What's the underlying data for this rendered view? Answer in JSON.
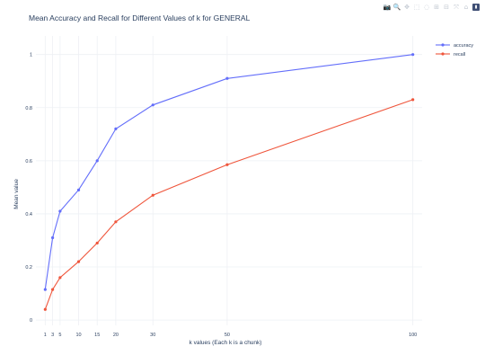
{
  "modebar": {
    "buttons": [
      {
        "icon": "camera-icon",
        "glyph": "📷"
      },
      {
        "icon": "zoom-icon",
        "glyph": "🔍"
      },
      {
        "icon": "pan-icon",
        "glyph": "✥"
      },
      {
        "icon": "box-select-icon",
        "glyph": "⬚"
      },
      {
        "icon": "lasso-select-icon",
        "glyph": "◌"
      },
      {
        "icon": "zoom-in-icon",
        "glyph": "⊞"
      },
      {
        "icon": "zoom-out-icon",
        "glyph": "⊟"
      },
      {
        "icon": "autoscale-icon",
        "glyph": "⤧"
      },
      {
        "icon": "reset-axes-icon",
        "glyph": "⌂"
      },
      {
        "icon": "plotly-logo-icon",
        "glyph": "▮"
      }
    ]
  },
  "chart_data": {
    "type": "line",
    "title": "Mean Accuracy and Recall for Different Values of k for GENERAL",
    "xlabel": "k values (Each k is a chunk)",
    "ylabel": "Mean value",
    "x": [
      1,
      3,
      5,
      10,
      15,
      20,
      30,
      50,
      100
    ],
    "xticks": [
      1,
      3,
      5,
      10,
      15,
      20,
      30,
      50,
      100
    ],
    "yticks": [
      0,
      0.2,
      0.4,
      0.6,
      0.8,
      1
    ],
    "ytick_labels": [
      "0",
      "0.2",
      "0.4",
      "0.6",
      "0.8",
      "1"
    ],
    "xlim": [
      -1.5,
      102.5
    ],
    "ylim": [
      -0.02,
      1.07
    ],
    "grid": true,
    "legend_position": "top-right",
    "series": [
      {
        "name": "accuracy",
        "color": "#636efa",
        "values": [
          0.115,
          0.31,
          0.41,
          0.49,
          0.6,
          0.72,
          0.81,
          0.91,
          1.0
        ]
      },
      {
        "name": "recall",
        "color": "#ef553b",
        "values": [
          0.04,
          0.115,
          0.16,
          0.22,
          0.29,
          0.37,
          0.47,
          0.585,
          0.83
        ]
      }
    ]
  }
}
